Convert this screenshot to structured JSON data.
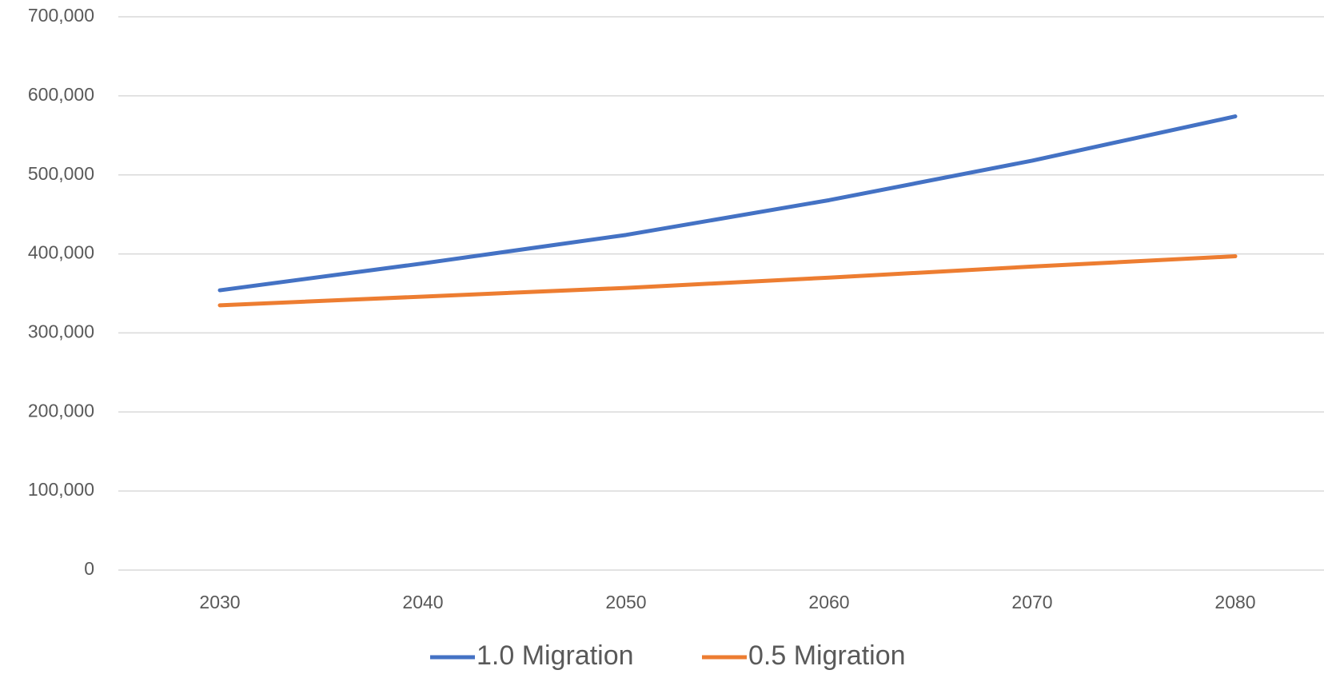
{
  "chart_data": {
    "type": "line",
    "categories": [
      "2030",
      "2040",
      "2050",
      "2060",
      "2070",
      "2080"
    ],
    "series": [
      {
        "name": "1.0 Migration",
        "color": "#4472c4",
        "values": [
          354000,
          388000,
          424000,
          468000,
          518000,
          574000
        ]
      },
      {
        "name": "0.5 Migration",
        "color": "#ed7d31",
        "values": [
          335000,
          346000,
          357000,
          370000,
          384000,
          397000
        ]
      }
    ],
    "ylim": [
      0,
      700000
    ],
    "yticks": [
      0,
      {
        "value": 100000,
        "label": "100,000"
      },
      {
        "value": 200000,
        "label": "200,000"
      },
      {
        "value": 300000,
        "label": "300,000"
      },
      {
        "value": 400000,
        "label": "400,000"
      },
      {
        "value": 500000,
        "label": "500,000"
      },
      {
        "value": 600000,
        "label": "600,000"
      },
      {
        "value": 700000,
        "label": "700,000"
      }
    ],
    "grid": true,
    "legend": "bottom"
  }
}
